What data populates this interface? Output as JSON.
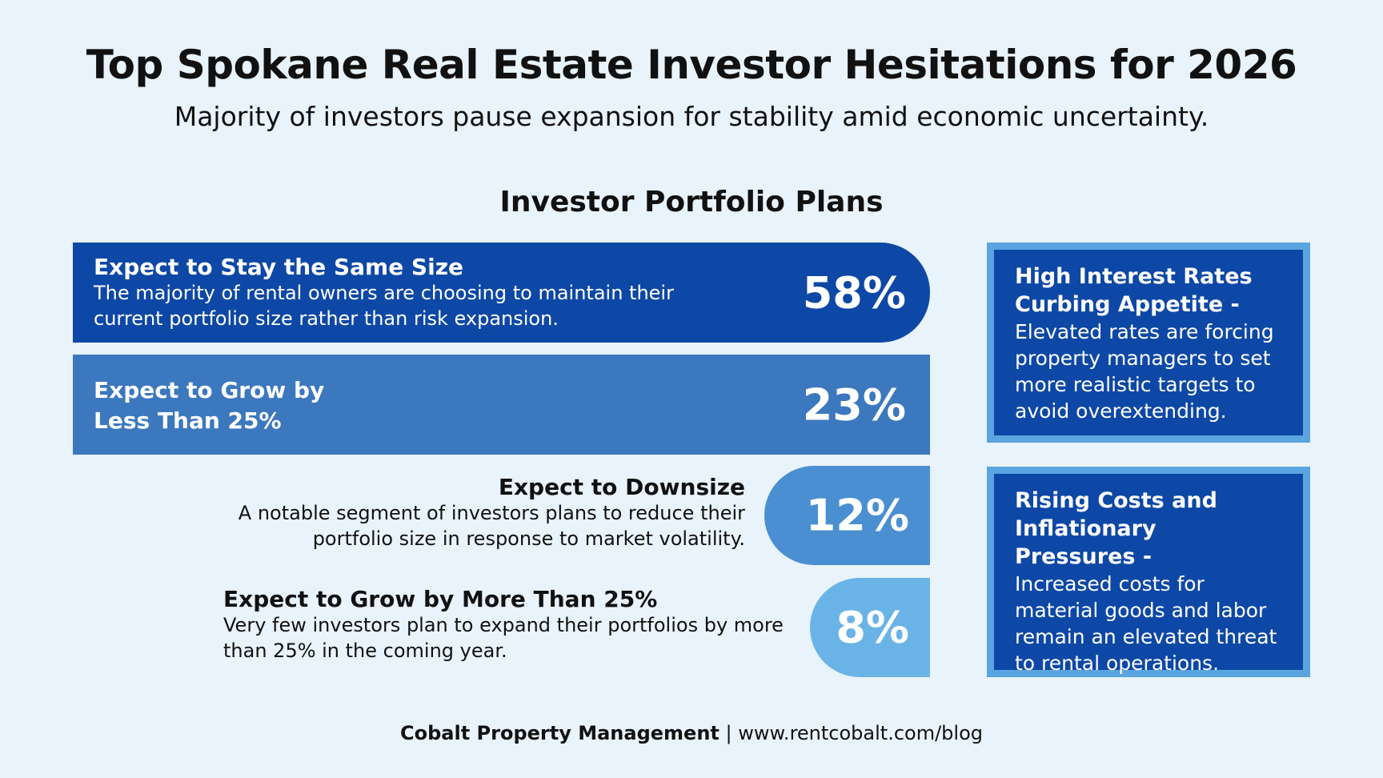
{
  "header": {
    "title": "Top Spokane Real Estate Investor Hesitations for 2026",
    "subtitle": "Majority of investors pause expansion for stability amid economic uncertainty."
  },
  "section_title": "Investor Portfolio Plans",
  "plans": [
    {
      "label": "Expect to Stay the Same Size",
      "description": "The majority of rental owners are choosing to maintain their current portfolio size rather than risk expansion.",
      "percent": "58%"
    },
    {
      "label": "Expect to Grow by Less Than 25%",
      "percent": "23%"
    },
    {
      "label": "Expect to Downsize",
      "description": "A notable segment of investors plans to reduce their portfolio size in response to market volatility.",
      "percent": "12%"
    },
    {
      "label": "Expect to Grow by More Than 25%",
      "description": "Very few investors plan to expand their portfolios by more than 25% in the coming year.",
      "percent": "8%"
    }
  ],
  "insights": [
    {
      "title": "High Interest Rates Curbing Appetite -",
      "body": "Elevated rates are forcing property managers to set more realistic targets to avoid overextending."
    },
    {
      "title": "Rising Costs and Inflationary Pressures -",
      "body": "Increased costs for material goods and labor remain an elevated threat to rental operations."
    }
  ],
  "footer": {
    "brand": "Cobalt Property Management",
    "separator": "|",
    "url": "www.rentcobalt.com/blog"
  }
}
